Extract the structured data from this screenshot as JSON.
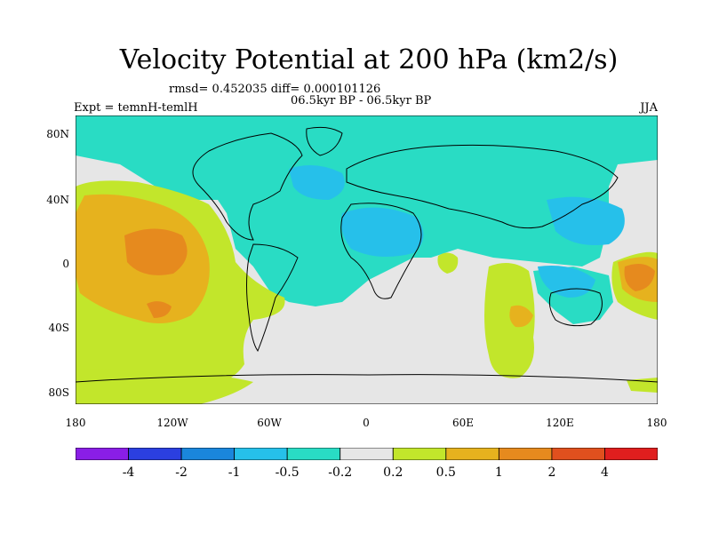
{
  "title": "Velocity Potential at 200 hPa (km2/s)",
  "stats": "rmsd= 0.452035 diff= 0.000101126",
  "subtitle": "06.5kyr BP - 06.5kyr BP",
  "expt": "Expt = temnH-temlH",
  "season": "JJA",
  "lat_ticks": [
    "80N",
    "40N",
    "0",
    "40S",
    "80S"
  ],
  "lon_ticks": [
    "180",
    "120W",
    "60W",
    "0",
    "60E",
    "120E",
    "180"
  ],
  "colorbar": {
    "colors": [
      "#8a1ee6",
      "#2b3fe0",
      "#1a86dc",
      "#26c0ea",
      "#29dcc4",
      "#e6e6e6",
      "#c2e62b",
      "#e6b21e",
      "#e68a1e",
      "#e0501e",
      "#e01e1e"
    ],
    "labels": [
      "-4",
      "-2",
      "-1",
      "-0.5",
      "-0.2",
      "0.2",
      "0.5",
      "1",
      "2",
      "4"
    ]
  }
}
